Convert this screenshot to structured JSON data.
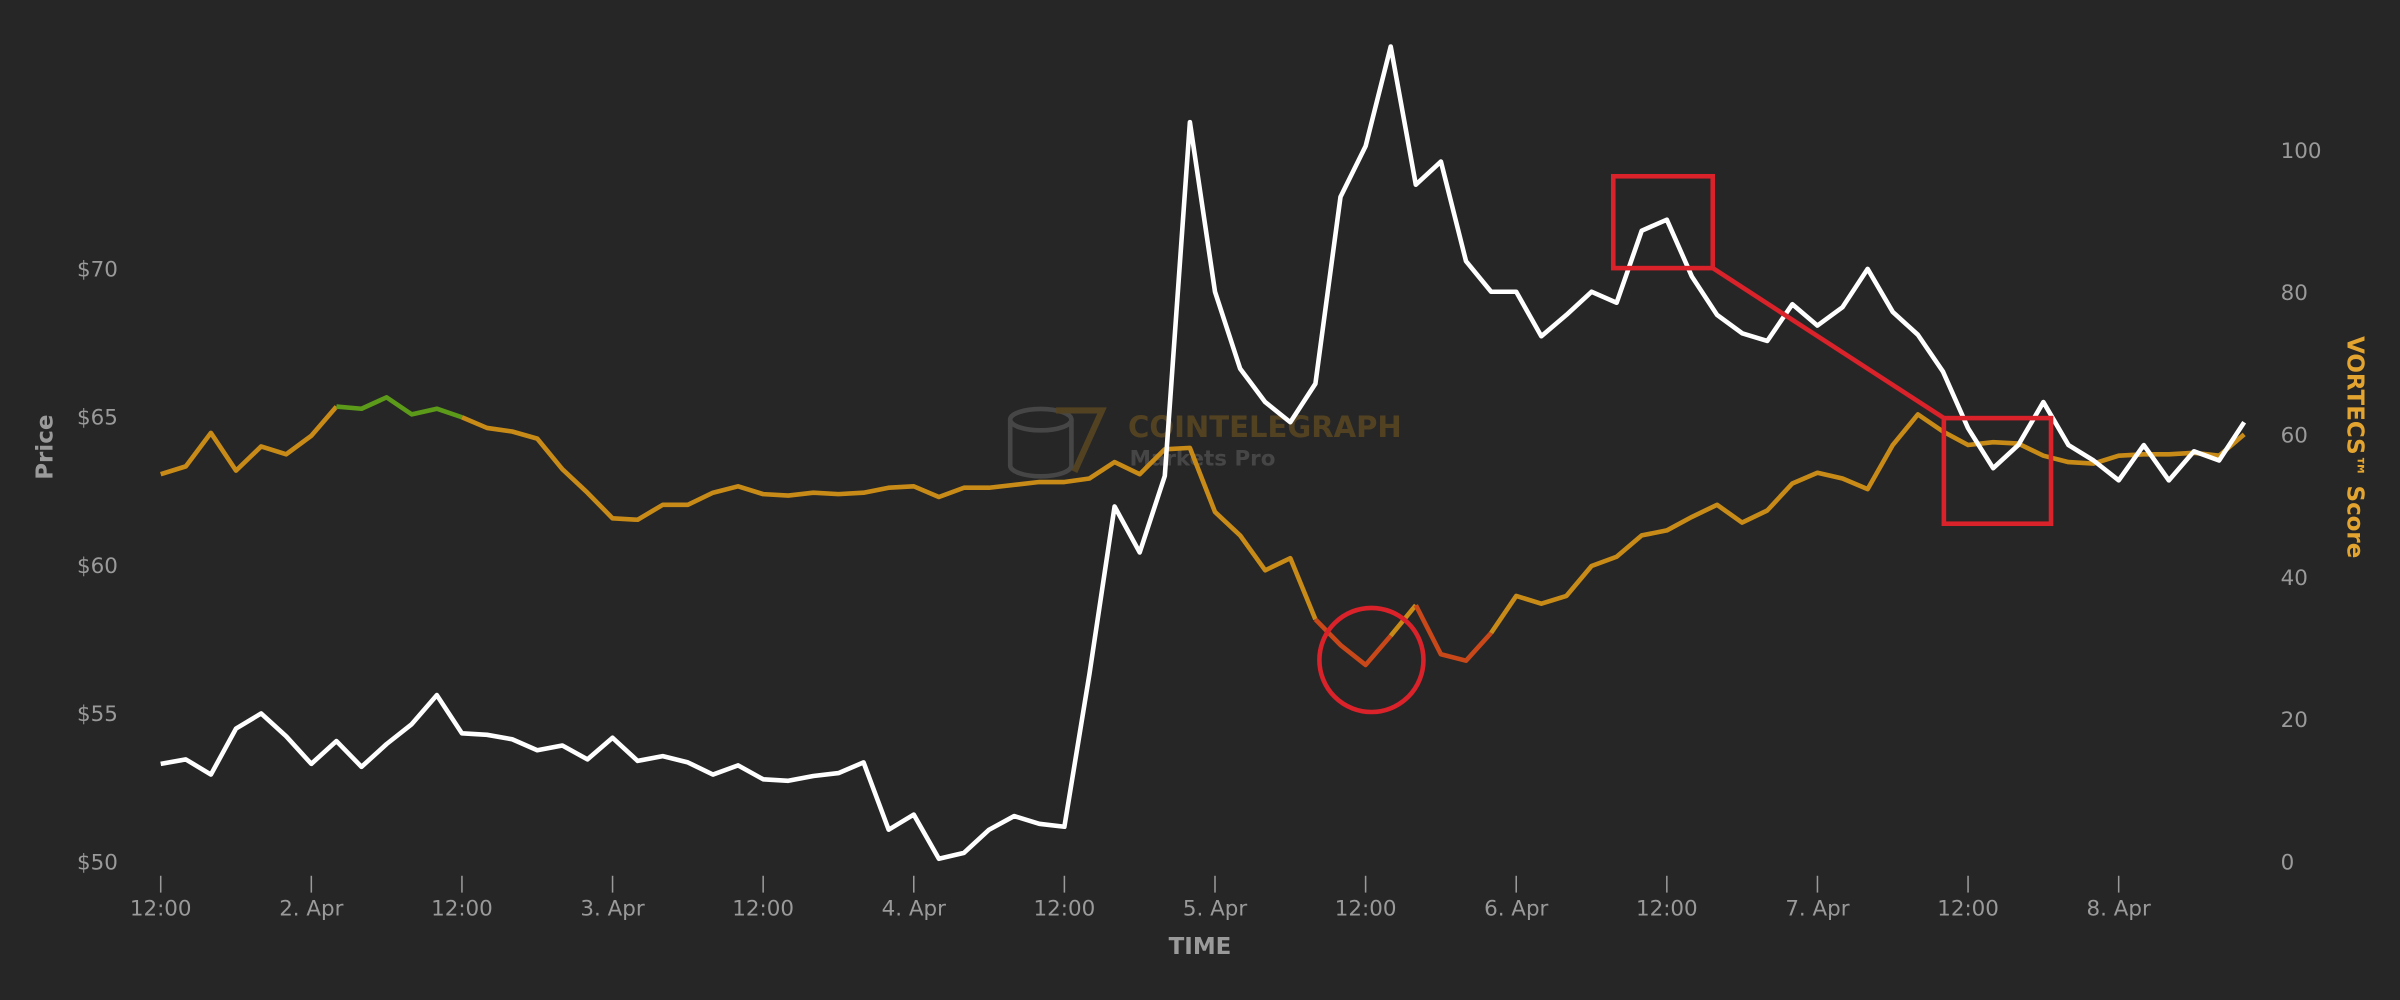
{
  "chart_data": {
    "type": "line",
    "xlabel": "TIME",
    "ylabel": "Price",
    "y2label": "VORTECS™ Score",
    "watermark": {
      "brand": "COINTELEGRAPH",
      "product": "Markets Pro"
    },
    "x": [
      12,
      14,
      16,
      18,
      20,
      22,
      24,
      26,
      28,
      30,
      32,
      34,
      36,
      38,
      40,
      42,
      44,
      46,
      48,
      50,
      52,
      54,
      56,
      58,
      60,
      62,
      64,
      66,
      68,
      70,
      72,
      74,
      76,
      78,
      80,
      82,
      84,
      86,
      88,
      90,
      92,
      94,
      96,
      98,
      100,
      102,
      104,
      106,
      108,
      110,
      112,
      114,
      116,
      118,
      120,
      122,
      124,
      126,
      128,
      130,
      132,
      134,
      136,
      138,
      140,
      142,
      144,
      146,
      148,
      150,
      152,
      154,
      156,
      158,
      160,
      162,
      164,
      166,
      168,
      170,
      172,
      174,
      176,
      178
    ],
    "xlim": [
      10,
      180
    ],
    "xticks": [
      {
        "value": 12,
        "label": "12:00"
      },
      {
        "value": 24,
        "label": "2. Apr"
      },
      {
        "value": 36,
        "label": "12:00"
      },
      {
        "value": 48,
        "label": "3. Apr"
      },
      {
        "value": 60,
        "label": "12:00"
      },
      {
        "value": 72,
        "label": "4. Apr"
      },
      {
        "value": 84,
        "label": "12:00"
      },
      {
        "value": 96,
        "label": "5. Apr"
      },
      {
        "value": 108,
        "label": "12:00"
      },
      {
        "value": 120,
        "label": "6. Apr"
      },
      {
        "value": 132,
        "label": "12:00"
      },
      {
        "value": 144,
        "label": "7. Apr"
      },
      {
        "value": 156,
        "label": "12:00"
      },
      {
        "value": 168,
        "label": "8. Apr"
      }
    ],
    "ylim": [
      50,
      74
    ],
    "yticks": [
      {
        "value": 50,
        "label": "$50"
      },
      {
        "value": 55,
        "label": "$55"
      },
      {
        "value": 60,
        "label": "$60"
      },
      {
        "value": 65,
        "label": "$65"
      },
      {
        "value": 70,
        "label": "$70"
      }
    ],
    "y2lim": [
      0,
      100
    ],
    "y2ticks": [
      0,
      20,
      40,
      60,
      80,
      100
    ],
    "grid": false,
    "series": [
      {
        "color": "#ffffff",
        "axis": "y",
        "values": [
          53.36,
          53.51,
          53.0,
          54.55,
          55.06,
          54.29,
          53.36,
          54.13,
          53.26,
          54.03,
          54.7,
          55.68,
          54.39,
          54.34,
          54.19,
          53.82,
          53.98,
          53.51,
          54.24,
          53.46,
          53.62,
          53.41,
          53.0,
          53.31,
          52.84,
          52.79,
          52.95,
          53.05,
          53.41,
          51.14,
          51.65,
          50.16,
          50.36,
          51.14,
          51.6,
          51.34,
          51.24,
          56.4,
          62.04,
          60.49,
          63.07,
          75.0,
          69.28,
          66.69,
          65.56,
          64.88,
          66.18,
          72.48,
          74.19,
          77.55,
          72.89,
          73.67,
          70.31,
          69.28,
          69.28,
          67.78,
          68.5,
          69.28,
          68.91,
          71.34,
          71.71,
          69.79,
          68.5,
          67.88,
          67.62,
          68.86,
          68.14,
          68.76,
          70.05,
          68.6,
          67.83,
          66.59,
          64.68,
          63.33,
          64.11,
          65.56,
          64.11,
          63.59,
          62.92,
          64.11,
          62.92,
          63.9,
          63.59,
          64.88
        ]
      },
      {
        "color": "#c98b17",
        "axis": "y2",
        "zones": [
          {
            "below": 33,
            "color": "#c9481a"
          },
          {
            "above": 63,
            "color": "#5c9a1a"
          }
        ],
        "values": [
          54.7,
          55.8,
          60.5,
          55.2,
          58.6,
          57.5,
          60.1,
          64.2,
          63.9,
          65.5,
          63.1,
          63.9,
          62.7,
          61.2,
          60.7,
          59.7,
          55.4,
          52.1,
          48.5,
          48.3,
          50.4,
          50.4,
          52.1,
          53.0,
          51.9,
          51.7,
          52.1,
          51.9,
          52.1,
          52.8,
          53.0,
          51.5,
          52.8,
          52.8,
          53.2,
          53.6,
          53.6,
          54.1,
          56.4,
          54.7,
          58.2,
          58.4,
          49.4,
          46.1,
          41.2,
          42.9,
          34.3,
          30.7,
          27.9,
          32.0,
          36.3,
          29.4,
          28.5,
          32.4,
          37.6,
          36.5,
          37.6,
          41.8,
          43.1,
          46.1,
          46.8,
          48.7,
          50.4,
          47.9,
          49.6,
          53.4,
          54.9,
          54.1,
          52.6,
          58.8,
          63.1,
          60.7,
          58.8,
          59.2,
          59.0,
          57.3,
          56.4,
          56.2,
          57.3,
          57.5,
          57.5,
          57.7,
          57.3,
          60.3
        ]
      }
    ]
  }
}
